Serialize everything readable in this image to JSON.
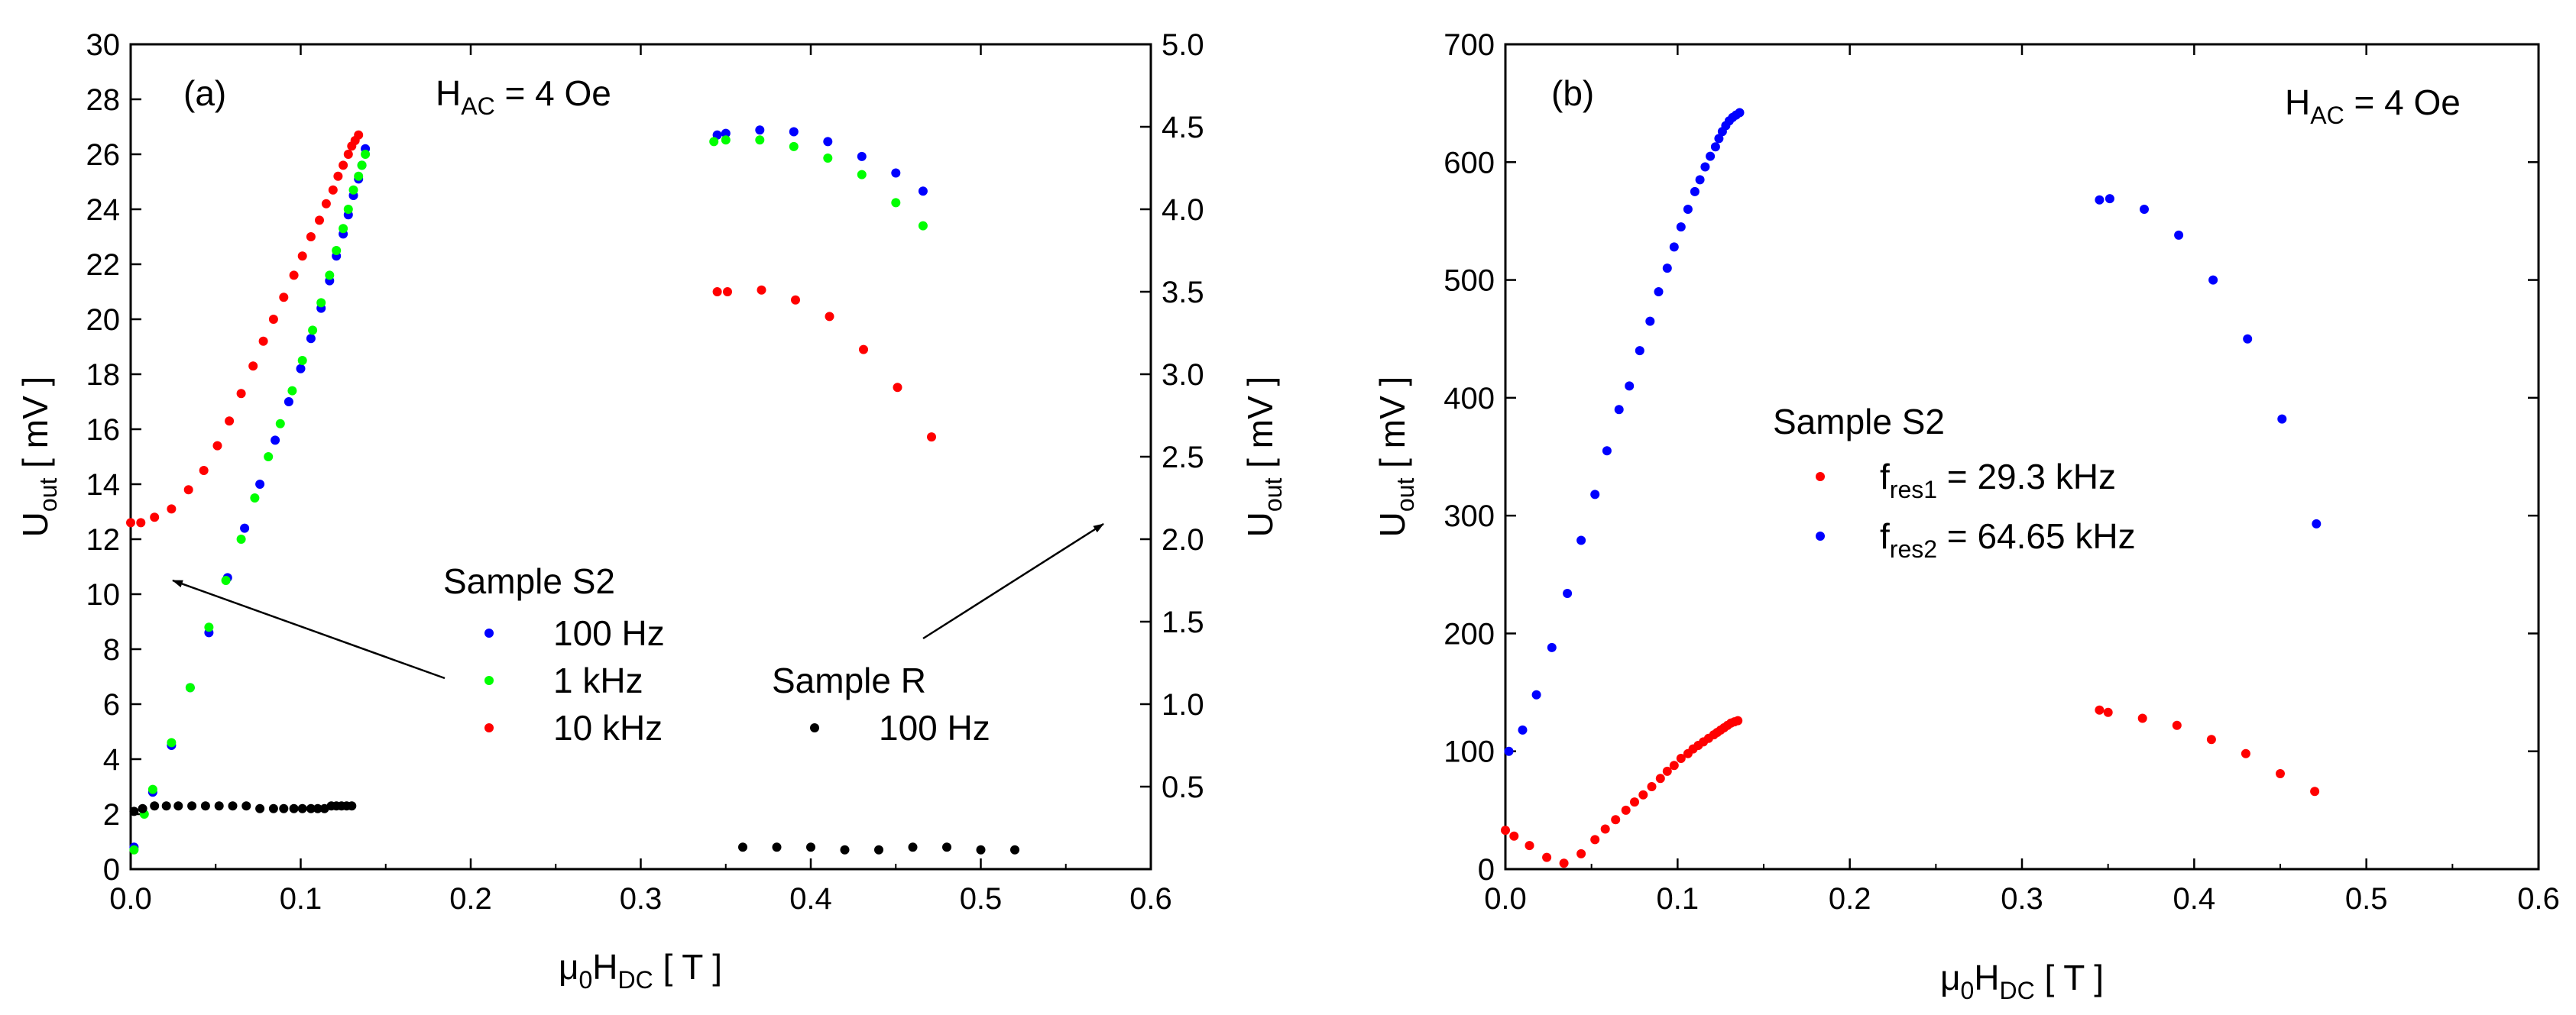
{
  "chart_data": [
    {
      "type": "scatter",
      "panel_label": "(a)",
      "annotation": {
        "main": "H",
        "sub": "AC",
        "rest": " = 4 Oe"
      },
      "xlabel": {
        "pre": "μ",
        "sub1": "0",
        "mid": "H",
        "sub2": "DC",
        "post": " [ T ]"
      },
      "ylabel_left": {
        "main": "U",
        "sub": "out",
        "post": " [ mV ]"
      },
      "ylabel_right": {
        "main": "U",
        "sub": "out",
        "post": " [ mV ]"
      },
      "xlim": [
        0,
        0.6
      ],
      "ylim_left": [
        0,
        30
      ],
      "ylim_right": [
        0,
        5
      ],
      "xticks": [
        "0.0",
        "0.1",
        "0.2",
        "0.3",
        "0.4",
        "0.5",
        "0.6"
      ],
      "yticks_left": [
        "0",
        "2",
        "4",
        "6",
        "8",
        "10",
        "12",
        "14",
        "16",
        "18",
        "20",
        "22",
        "24",
        "26",
        "28",
        "30"
      ],
      "yticks_right": [
        "0.5",
        "1.0",
        "1.5",
        "2.0",
        "2.5",
        "3.0",
        "3.5",
        "4.0",
        "4.5",
        "5.0"
      ],
      "legend_groups": [
        {
          "title": "Sample S2",
          "entries": [
            "100 Hz",
            "1 kHz",
            "10 kHz"
          ]
        },
        {
          "title": "Sample R",
          "entries": [
            "100 Hz"
          ]
        }
      ],
      "series": [
        {
          "name": "100 Hz",
          "group": "Sample S2",
          "axis": "left",
          "color": "#0000ff",
          "x": [
            0.002,
            0.013,
            0.024,
            0.035,
            0.046,
            0.057,
            0.067,
            0.076,
            0.085,
            0.093,
            0.1,
            0.106,
            0.112,
            0.117,
            0.121,
            0.125,
            0.128,
            0.131,
            0.134,
            0.136,
            0.138
          ],
          "y": [
            0.8,
            2.8,
            4.5,
            6.6,
            8.6,
            10.6,
            12.4,
            14.0,
            15.6,
            17.0,
            18.2,
            19.3,
            20.4,
            21.4,
            22.3,
            23.1,
            23.8,
            24.5,
            25.1,
            25.6,
            26.2
          ]
        },
        {
          "name": "1 kHz",
          "group": "Sample S2",
          "axis": "left",
          "color": "#00ff00",
          "x": [
            0.002,
            0.008,
            0.013,
            0.024,
            0.035,
            0.046,
            0.056,
            0.065,
            0.073,
            0.081,
            0.088,
            0.095,
            0.101,
            0.107,
            0.112,
            0.117,
            0.121,
            0.125,
            0.128,
            0.131,
            0.134,
            0.136,
            0.138
          ],
          "y": [
            0.7,
            2.0,
            2.9,
            4.6,
            6.6,
            8.8,
            10.5,
            12.0,
            13.5,
            15.0,
            16.2,
            17.4,
            18.5,
            19.6,
            20.6,
            21.6,
            22.5,
            23.3,
            24.0,
            24.7,
            25.2,
            25.6,
            26.0
          ]
        },
        {
          "name": "10 kHz",
          "group": "Sample S2",
          "axis": "left",
          "color": "#ff0000",
          "x": [
            0.0,
            0.006,
            0.014,
            0.024,
            0.034,
            0.043,
            0.051,
            0.058,
            0.065,
            0.072,
            0.078,
            0.084,
            0.09,
            0.096,
            0.101,
            0.106,
            0.111,
            0.115,
            0.119,
            0.122,
            0.125,
            0.128,
            0.13,
            0.132,
            0.134
          ],
          "y": [
            12.6,
            12.6,
            12.8,
            13.1,
            13.8,
            14.5,
            15.4,
            16.3,
            17.3,
            18.3,
            19.2,
            20.0,
            20.8,
            21.6,
            22.3,
            23.0,
            23.6,
            24.2,
            24.7,
            25.2,
            25.6,
            26.0,
            26.3,
            26.5,
            26.7
          ]
        },
        {
          "name": "100 Hz",
          "group": "Sample S2",
          "axis": "right",
          "color": "#0000ff",
          "x": [
            0.345,
            0.35,
            0.37,
            0.39,
            0.41,
            0.43,
            0.45,
            0.466
          ],
          "y": [
            4.45,
            4.46,
            4.48,
            4.47,
            4.41,
            4.32,
            4.22,
            4.11
          ]
        },
        {
          "name": "1 kHz",
          "group": "Sample S2",
          "axis": "right",
          "color": "#00ff00",
          "x": [
            0.343,
            0.35,
            0.37,
            0.39,
            0.41,
            0.43,
            0.45,
            0.466
          ],
          "y": [
            4.41,
            4.42,
            4.42,
            4.38,
            4.31,
            4.21,
            4.04,
            3.9
          ]
        },
        {
          "name": "10 kHz",
          "group": "Sample S2",
          "axis": "right",
          "color": "#ff0000",
          "x": [
            0.345,
            0.351,
            0.371,
            0.391,
            0.411,
            0.431,
            0.451,
            0.471
          ],
          "y": [
            3.5,
            3.5,
            3.51,
            3.45,
            3.35,
            3.15,
            2.92,
            2.62
          ]
        },
        {
          "name": "100 Hz",
          "group": "Sample R",
          "axis": "left",
          "color": "#000000",
          "x": [
            0.002,
            0.007,
            0.014,
            0.021,
            0.028,
            0.036,
            0.044,
            0.052,
            0.06,
            0.068,
            0.076,
            0.084,
            0.09,
            0.096,
            0.101,
            0.106,
            0.11,
            0.114,
            0.118,
            0.121,
            0.124,
            0.127,
            0.13,
            0.36,
            0.38,
            0.4,
            0.42,
            0.44,
            0.46,
            0.48,
            0.5,
            0.52
          ],
          "y": [
            2.1,
            2.2,
            2.3,
            2.3,
            2.3,
            2.3,
            2.3,
            2.3,
            2.3,
            2.3,
            2.2,
            2.2,
            2.2,
            2.2,
            2.2,
            2.2,
            2.2,
            2.2,
            2.3,
            2.3,
            2.3,
            2.3,
            2.3,
            0.8,
            0.8,
            0.8,
            0.7,
            0.7,
            0.8,
            0.8,
            0.7,
            0.7
          ]
        }
      ]
    },
    {
      "type": "scatter",
      "panel_label": "(b)",
      "annotation": {
        "main": "H",
        "sub": "AC",
        "rest": " = 4 Oe"
      },
      "xlabel": {
        "pre": "μ",
        "sub1": "0",
        "mid": "H",
        "sub2": "DC",
        "post": " [ T ]"
      },
      "ylabel_left": {
        "main": "U",
        "sub": "out",
        "post": " [ mV ]"
      },
      "xlim": [
        0,
        0.6
      ],
      "ylim_left": [
        0,
        700
      ],
      "xticks": [
        "0.0",
        "0.1",
        "0.2",
        "0.3",
        "0.4",
        "0.5",
        "0.6"
      ],
      "yticks_left": [
        "0",
        "100",
        "200",
        "300",
        "400",
        "500",
        "600",
        "700"
      ],
      "legend_groups": [
        {
          "title": "Sample S2",
          "entries": []
        }
      ],
      "legend_items": [
        {
          "main": "f",
          "sub": "res1",
          "rest": " = 29.3 kHz",
          "color": "#ff0000"
        },
        {
          "main": "f",
          "sub": "res2",
          "rest": " = 64.65 kHz",
          "color": "#0000ff"
        }
      ],
      "series": [
        {
          "name": "f_res1 = 29.3 kHz",
          "axis": "left",
          "color": "#ff0000",
          "x": [
            0.0,
            0.005,
            0.014,
            0.024,
            0.034,
            0.044,
            0.052,
            0.058,
            0.064,
            0.07,
            0.075,
            0.08,
            0.085,
            0.09,
            0.094,
            0.098,
            0.102,
            0.106,
            0.109,
            0.112,
            0.115,
            0.118,
            0.121,
            0.123,
            0.125,
            0.127,
            0.129,
            0.131,
            0.133,
            0.135,
            0.345,
            0.35,
            0.37,
            0.39,
            0.41,
            0.43,
            0.45,
            0.47
          ],
          "y": [
            33,
            28,
            20,
            10,
            5,
            13,
            25,
            34,
            42,
            50,
            57,
            63,
            70,
            77,
            83,
            88,
            94,
            98,
            102,
            105,
            108,
            111,
            114,
            116,
            118,
            120,
            122,
            124,
            125,
            126,
            135,
            133,
            128,
            122,
            110,
            98,
            81,
            66
          ]
        },
        {
          "name": "f_res2 = 64.65 kHz",
          "axis": "left",
          "color": "#0000ff",
          "x": [
            0.002,
            0.01,
            0.018,
            0.027,
            0.036,
            0.044,
            0.052,
            0.059,
            0.066,
            0.072,
            0.078,
            0.084,
            0.089,
            0.094,
            0.098,
            0.102,
            0.106,
            0.11,
            0.113,
            0.116,
            0.119,
            0.122,
            0.124,
            0.126,
            0.128,
            0.13,
            0.132,
            0.134,
            0.136,
            0.345,
            0.351,
            0.371,
            0.391,
            0.411,
            0.431,
            0.451,
            0.471
          ],
          "y": [
            100,
            118,
            148,
            188,
            234,
            279,
            318,
            355,
            390,
            410,
            440,
            465,
            490,
            510,
            528,
            545,
            560,
            575,
            585,
            596,
            605,
            613,
            620,
            626,
            631,
            635,
            638,
            640,
            642,
            568,
            569,
            560,
            538,
            500,
            450,
            382,
            293
          ]
        }
      ]
    }
  ]
}
